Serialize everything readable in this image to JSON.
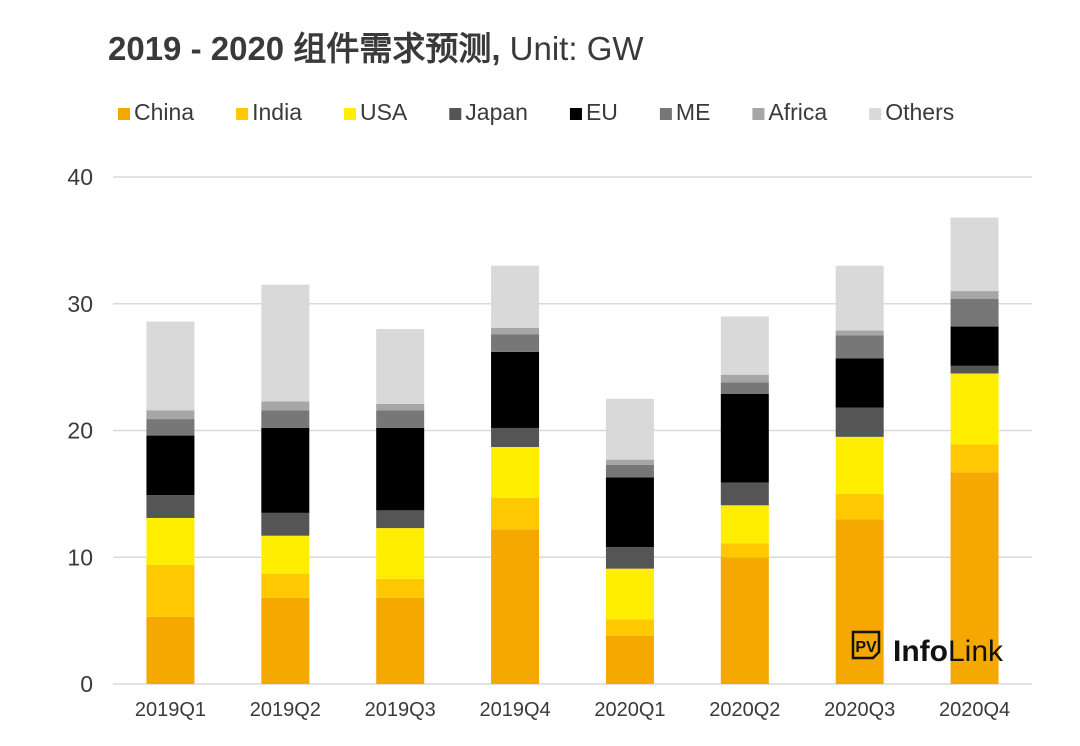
{
  "chart_data": {
    "type": "bar",
    "stacked": true,
    "title_bold": "2019 - 2020 组件需求预测,",
    "title_rest": " Unit: GW",
    "categories": [
      "2019Q1",
      "2019Q2",
      "2019Q3",
      "2019Q4",
      "2020Q1",
      "2020Q2",
      "2020Q3",
      "2020Q4"
    ],
    "ylim": [
      0,
      40
    ],
    "yticks": [
      0,
      10,
      20,
      30,
      40
    ],
    "grid": true,
    "legend_position": "top",
    "series": [
      {
        "name": "China",
        "color": "#F5A800",
        "values": [
          5.3,
          6.8,
          6.8,
          12.2,
          3.8,
          10.0,
          13.0,
          16.7
        ]
      },
      {
        "name": "India",
        "color": "#FFC800",
        "values": [
          4.1,
          1.9,
          1.5,
          2.5,
          1.3,
          1.1,
          2.0,
          2.2
        ]
      },
      {
        "name": "USA",
        "color": "#FFEE00",
        "values": [
          3.7,
          3.0,
          4.0,
          4.0,
          4.0,
          3.0,
          4.5,
          5.6
        ]
      },
      {
        "name": "Japan",
        "color": "#555555",
        "values": [
          1.8,
          1.8,
          1.4,
          1.5,
          1.7,
          1.8,
          2.3,
          0.6
        ]
      },
      {
        "name": "EU",
        "color": "#000000",
        "values": [
          4.7,
          6.7,
          6.5,
          6.0,
          5.5,
          7.0,
          3.9,
          3.1
        ]
      },
      {
        "name": "ME",
        "color": "#777777",
        "values": [
          1.3,
          1.4,
          1.4,
          1.4,
          1.0,
          0.9,
          1.8,
          2.2
        ]
      },
      {
        "name": "Africa",
        "color": "#A6A6A6",
        "values": [
          0.7,
          0.7,
          0.5,
          0.5,
          0.4,
          0.6,
          0.4,
          0.6
        ]
      },
      {
        "name": "Others",
        "color": "#D9D9D9",
        "values": [
          7.0,
          9.2,
          5.9,
          4.9,
          4.8,
          4.6,
          5.1,
          5.8
        ]
      }
    ]
  },
  "logo": {
    "mark": "PV",
    "text_a": "Info",
    "text_b": "Link"
  }
}
